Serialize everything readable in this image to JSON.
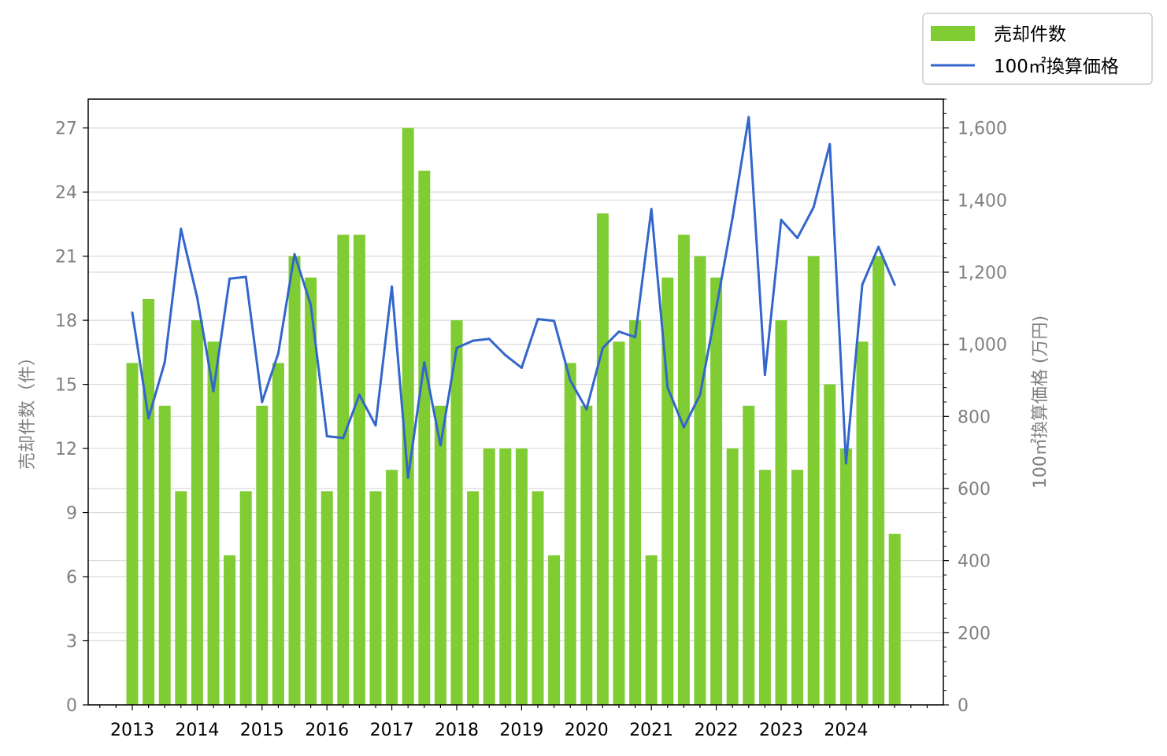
{
  "chart_data": {
    "type": "bar+line",
    "title": "",
    "x_tick_labels": [
      "2013",
      "2014",
      "2015",
      "2016",
      "2017",
      "2018",
      "2019",
      "2020",
      "2021",
      "2022",
      "2023",
      "2024"
    ],
    "periods": [
      "2013Q1",
      "2013Q2",
      "2013Q3",
      "2013Q4",
      "2014Q1",
      "2014Q2",
      "2014Q3",
      "2014Q4",
      "2015Q1",
      "2015Q2",
      "2015Q3",
      "2015Q4",
      "2016Q1",
      "2016Q2",
      "2016Q3",
      "2016Q4",
      "2017Q1",
      "2017Q2",
      "2017Q3",
      "2017Q4",
      "2018Q1",
      "2018Q2",
      "2018Q3",
      "2018Q4",
      "2019Q1",
      "2019Q2",
      "2019Q3",
      "2019Q4",
      "2020Q1",
      "2020Q2",
      "2020Q3",
      "2020Q4",
      "2021Q1",
      "2021Q2",
      "2021Q3",
      "2021Q4",
      "2022Q1",
      "2022Q2",
      "2022Q3",
      "2022Q4",
      "2023Q1",
      "2023Q2",
      "2023Q3",
      "2023Q4",
      "2024Q1",
      "2024Q2",
      "2024Q3",
      "2024Q4"
    ],
    "series": [
      {
        "name": "売却件数",
        "type": "bar",
        "axis": "left",
        "color": "#7fcc33",
        "values": [
          16,
          19,
          14,
          10,
          18,
          17,
          7,
          10,
          14,
          16,
          21,
          20,
          10,
          22,
          22,
          10,
          11,
          27,
          25,
          14,
          18,
          10,
          12,
          12,
          12,
          10,
          7,
          16,
          14,
          23,
          17,
          18,
          7,
          20,
          22,
          21,
          20,
          12,
          14,
          11,
          18,
          11,
          21,
          15,
          12,
          17,
          21,
          8
        ]
      },
      {
        "name": "100㎡換算価格",
        "type": "line",
        "axis": "right",
        "color": "#3366cc",
        "values": [
          1088,
          795,
          950,
          1320,
          1130,
          870,
          1182,
          1187,
          840,
          975,
          1250,
          1110,
          745,
          740,
          860,
          775,
          1160,
          630,
          950,
          720,
          990,
          1010,
          1015,
          970,
          935,
          1070,
          1065,
          900,
          820,
          990,
          1035,
          1020,
          1375,
          880,
          770,
          860,
          1100,
          1350,
          1630,
          915,
          1345,
          1295,
          1380,
          1555,
          670,
          1165,
          1270,
          1165
        ]
      }
    ],
    "y_left": {
      "label": "売却件数（件）",
      "lim": [
        0,
        28.35
      ],
      "ticks": [
        "0",
        "3",
        "6",
        "9",
        "12",
        "15",
        "18",
        "21",
        "24",
        "27"
      ]
    },
    "y_right": {
      "label": "100㎡換算価格 (万円)",
      "lim": [
        0,
        1680
      ],
      "ticks": [
        "0",
        "200",
        "400",
        "600",
        "800",
        "1,000",
        "1,200",
        "1,400",
        "1,600"
      ]
    },
    "grid": true,
    "legend": {
      "placement": "top-right, outside plot",
      "entries": [
        "売却件数",
        "100㎡換算価格"
      ]
    },
    "colors": {
      "tick_label": "#808080",
      "grid": "#d9d9d9"
    }
  }
}
